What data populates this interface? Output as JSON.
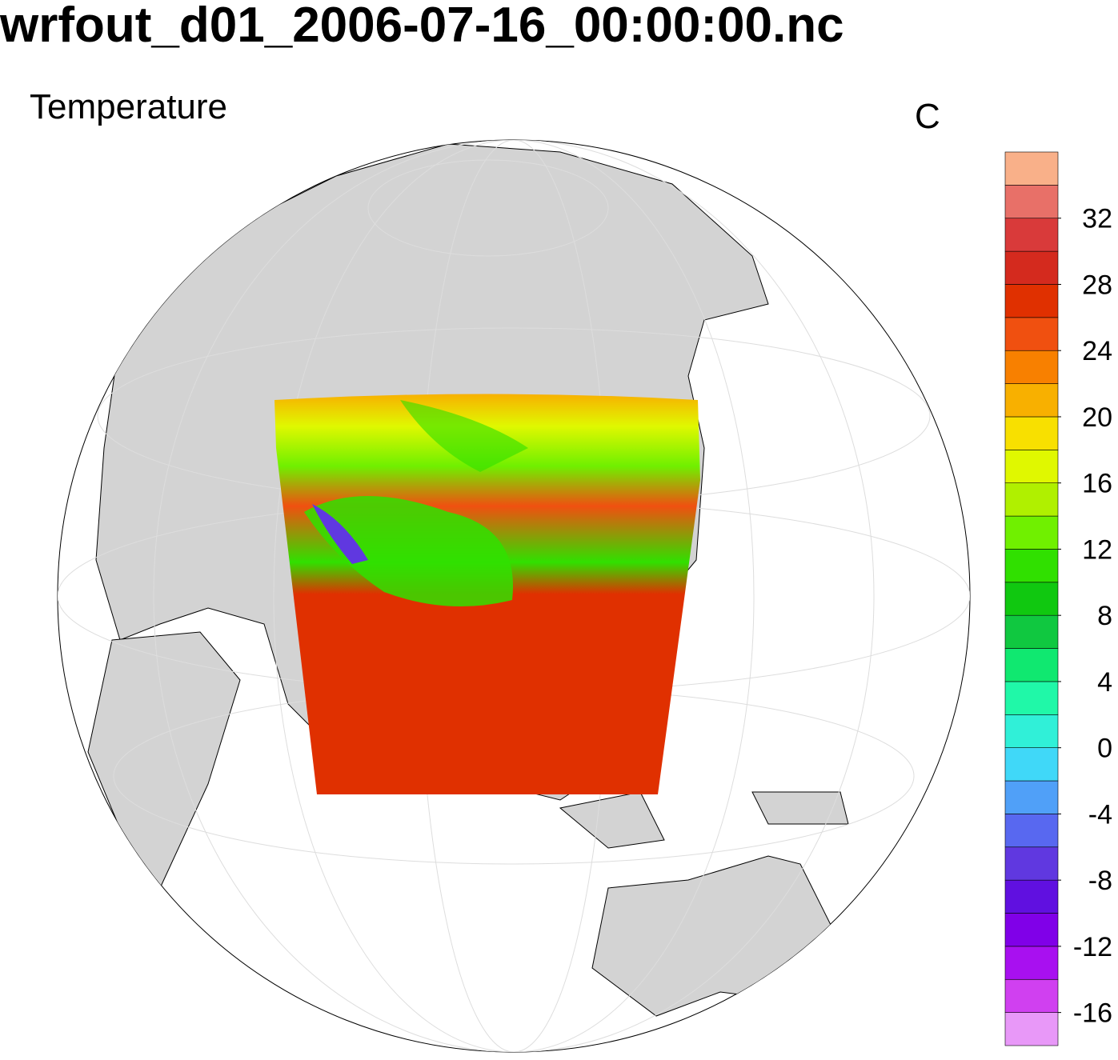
{
  "chart_data": {
    "type": "colorbar",
    "title": "wrfout_d01_2006-07-16_00:00:00.nc",
    "subtitle": "Temperature",
    "units": "C",
    "ylim": [
      -18,
      36
    ],
    "yticks": [
      -16,
      -12,
      -8,
      -4,
      0,
      4,
      8,
      12,
      16,
      20,
      24,
      28,
      32
    ],
    "colors": [
      "#e898f8",
      "#d040f0",
      "#a810f0",
      "#8000e8",
      "#6010e0",
      "#6038e0",
      "#5868f0",
      "#50a0f8",
      "#40d8f8",
      "#30f0d8",
      "#20f8a8",
      "#10e870",
      "#10c840",
      "#10c810",
      "#30e000",
      "#70f000",
      "#b0f000",
      "#e0f800",
      "#f8e000",
      "#f8b000",
      "#f88000",
      "#f05010",
      "#e03000",
      "#d42a1e",
      "#d93a3a",
      "#e87068",
      "#f9b089"
    ]
  }
}
